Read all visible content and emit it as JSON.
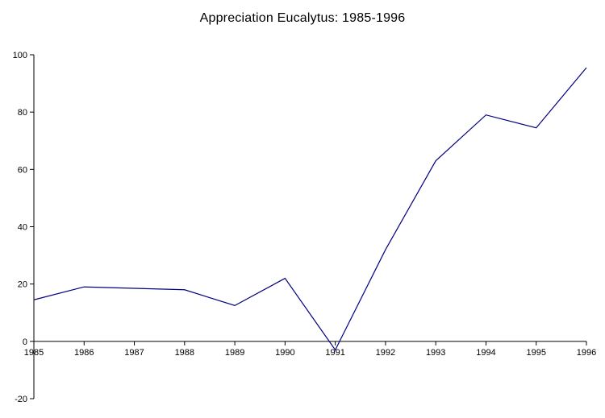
{
  "chart": {
    "title": "Appreciation Eucalytus: 1985-1996"
  },
  "chart_data": {
    "type": "line",
    "title": "Appreciation Eucalytus: 1985-1996",
    "x": [
      1985,
      1986,
      1987,
      1988,
      1989,
      1990,
      1991,
      1992,
      1993,
      1994,
      1995,
      1996
    ],
    "values": [
      14.5,
      19,
      18.5,
      18,
      12.5,
      22,
      -3,
      32,
      63,
      79,
      74.5,
      95.5
    ],
    "xlabel": "",
    "ylabel": "",
    "ylim": [
      -20,
      100
    ],
    "y_ticks": [
      -20,
      0,
      20,
      40,
      60,
      80,
      100
    ],
    "grid": false,
    "legend": false,
    "line_color": "#000080",
    "axis_color": "#000000",
    "background_color": "#ffffff"
  }
}
